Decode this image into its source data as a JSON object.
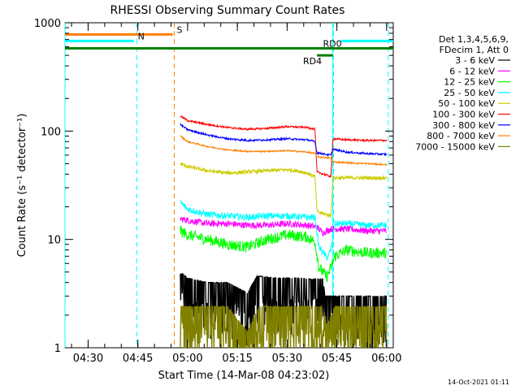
{
  "chart_data": {
    "type": "line",
    "title": "RHESSI Observing Summary Count Rates",
    "xlabel": "Start Time (14-Mar-08 04:23:02)",
    "ylabel": "Count Rate (s⁻¹ detector⁻¹)",
    "yscale": "log",
    "ylim": [
      1,
      1000
    ],
    "xlim": [
      4.3839,
      6.0333
    ],
    "x_unit": "hours UT",
    "x_tick_labels": [
      "04:30",
      "04:45",
      "05:00",
      "05:15",
      "05:30",
      "05:45",
      "06:00"
    ],
    "x_tick_values": [
      4.5,
      4.75,
      5.0,
      5.25,
      5.5,
      5.75,
      6.0
    ],
    "y_tick_labels": [
      "1",
      "10",
      "100",
      "1000"
    ],
    "y_tick_values": [
      1,
      10,
      100,
      1000
    ],
    "legend": {
      "header": [
        "Det 1,3,4,5,6,9,",
        "FDecim 1, Att 0"
      ],
      "placement": "right"
    },
    "series": [
      {
        "name": "3 - 6 keV",
        "color": "#000000",
        "noise": 0.45,
        "kind": "band",
        "points": [
          [
            4.9636,
            5.0
          ],
          [
            5.0,
            4.4
          ],
          [
            5.1,
            4.0
          ],
          [
            5.2,
            4.0
          ],
          [
            5.3,
            3.2
          ],
          [
            5.35,
            4.6
          ],
          [
            5.45,
            4.4
          ],
          [
            5.55,
            4.4
          ],
          [
            5.62,
            4.3
          ],
          [
            5.68,
            4.3
          ],
          [
            5.69,
            3.0
          ],
          [
            5.76,
            3.0
          ],
          [
            5.78,
            3.0
          ],
          [
            5.9,
            3.0
          ],
          [
            6.0,
            3.0
          ]
        ]
      },
      {
        "name": "6 - 12 keV",
        "color": "#ff00ff",
        "noise": 0.07,
        "points": [
          [
            4.9636,
            15.5
          ],
          [
            5.0,
            15.0
          ],
          [
            5.1,
            14.0
          ],
          [
            5.2,
            14.0
          ],
          [
            5.3,
            13.5
          ],
          [
            5.4,
            13.5
          ],
          [
            5.5,
            14.0
          ],
          [
            5.6,
            13.5
          ],
          [
            5.65,
            13.0
          ],
          [
            5.68,
            11.5
          ],
          [
            5.72,
            12.5
          ],
          [
            5.8,
            12.5
          ],
          [
            5.9,
            12.0
          ],
          [
            6.0,
            12.0
          ]
        ]
      },
      {
        "name": "12 - 25 keV",
        "color": "#00ff00",
        "noise": 0.12,
        "points": [
          [
            4.9636,
            12.0
          ],
          [
            5.0,
            11.0
          ],
          [
            5.1,
            10.0
          ],
          [
            5.2,
            9.0
          ],
          [
            5.3,
            8.5
          ],
          [
            5.4,
            10.0
          ],
          [
            5.5,
            11.0
          ],
          [
            5.6,
            10.5
          ],
          [
            5.64,
            9.5
          ],
          [
            5.66,
            5.5
          ],
          [
            5.7,
            4.5
          ],
          [
            5.72,
            5.5
          ],
          [
            5.74,
            7.0
          ],
          [
            5.8,
            8.0
          ],
          [
            5.9,
            7.5
          ],
          [
            6.0,
            7.5
          ]
        ]
      },
      {
        "name": "25 - 50 keV",
        "color": "#00ffff",
        "noise": 0.07,
        "points": [
          [
            4.9636,
            22.0
          ],
          [
            5.0,
            19.0
          ],
          [
            5.1,
            17.0
          ],
          [
            5.2,
            16.5
          ],
          [
            5.3,
            16.0
          ],
          [
            5.4,
            16.5
          ],
          [
            5.5,
            16.5
          ],
          [
            5.6,
            16.0
          ],
          [
            5.64,
            16.0
          ],
          [
            5.66,
            8.5
          ],
          [
            5.7,
            6.8
          ],
          [
            5.72,
            8.0
          ],
          [
            5.74,
            14.0
          ],
          [
            5.8,
            14.0
          ],
          [
            5.9,
            13.5
          ],
          [
            6.0,
            13.5
          ]
        ]
      },
      {
        "name": "50 - 100 keV",
        "color": "#cccc00",
        "noise": 0.04,
        "points": [
          [
            4.9636,
            50.0
          ],
          [
            5.0,
            47.0
          ],
          [
            5.1,
            43.0
          ],
          [
            5.2,
            41.0
          ],
          [
            5.3,
            42.0
          ],
          [
            5.4,
            43.0
          ],
          [
            5.5,
            44.0
          ],
          [
            5.55,
            43.0
          ],
          [
            5.6,
            41.0
          ],
          [
            5.64,
            38.0
          ],
          [
            5.65,
            18.0
          ],
          [
            5.72,
            16.5
          ],
          [
            5.73,
            37.0
          ],
          [
            5.8,
            37.0
          ],
          [
            5.9,
            37.0
          ],
          [
            6.0,
            37.0
          ]
        ]
      },
      {
        "name": "100 - 300 keV",
        "color": "#ff0000",
        "noise": 0.02,
        "points": [
          [
            4.9636,
            138.0
          ],
          [
            5.0,
            125.0
          ],
          [
            5.1,
            115.0
          ],
          [
            5.2,
            108.0
          ],
          [
            5.3,
            104.0
          ],
          [
            5.4,
            106.0
          ],
          [
            5.5,
            110.0
          ],
          [
            5.6,
            108.0
          ],
          [
            5.64,
            104.0
          ],
          [
            5.65,
            42.0
          ],
          [
            5.72,
            38.0
          ],
          [
            5.73,
            85.0
          ],
          [
            5.8,
            83.0
          ],
          [
            5.9,
            82.0
          ],
          [
            6.0,
            82.0
          ]
        ]
      },
      {
        "name": "300 - 800 keV",
        "color": "#0000ff",
        "noise": 0.02,
        "points": [
          [
            4.9636,
            115.0
          ],
          [
            5.0,
            103.0
          ],
          [
            5.1,
            92.0
          ],
          [
            5.2,
            85.0
          ],
          [
            5.3,
            82.0
          ],
          [
            5.4,
            83.0
          ],
          [
            5.5,
            85.0
          ],
          [
            5.6,
            83.0
          ],
          [
            5.64,
            80.0
          ],
          [
            5.65,
            63.0
          ],
          [
            5.72,
            60.0
          ],
          [
            5.73,
            68.0
          ],
          [
            5.8,
            64.0
          ],
          [
            5.9,
            62.0
          ],
          [
            6.0,
            61.0
          ]
        ]
      },
      {
        "name": "800 - 7000 keV",
        "color": "#ff8000",
        "noise": 0.015,
        "points": [
          [
            4.9636,
            90.0
          ],
          [
            5.0,
            80.0
          ],
          [
            5.1,
            72.0
          ],
          [
            5.2,
            67.0
          ],
          [
            5.3,
            65.0
          ],
          [
            5.4,
            65.0
          ],
          [
            5.5,
            66.0
          ],
          [
            5.6,
            64.0
          ],
          [
            5.64,
            62.0
          ],
          [
            5.65,
            58.0
          ],
          [
            5.72,
            56.0
          ],
          [
            5.73,
            52.0
          ],
          [
            5.8,
            51.0
          ],
          [
            5.9,
            50.0
          ],
          [
            6.0,
            49.0
          ]
        ]
      },
      {
        "name": "7000 - 15000 keV",
        "color": "#808000",
        "noise": 0.55,
        "kind": "band",
        "points": [
          [
            4.9636,
            2.4
          ],
          [
            5.1,
            2.4
          ],
          [
            5.2,
            2.4
          ],
          [
            5.3,
            1.4
          ],
          [
            5.36,
            2.4
          ],
          [
            5.5,
            2.4
          ],
          [
            5.62,
            2.4
          ],
          [
            5.68,
            2.4
          ],
          [
            5.7,
            1.6
          ],
          [
            5.74,
            2.4
          ],
          [
            5.9,
            2.4
          ],
          [
            6.0,
            2.4
          ]
        ]
      }
    ],
    "flag_bars": [
      {
        "label": "S",
        "color": "#ff8000",
        "y": 780,
        "x_start": 4.3839,
        "x_end": 4.925
      },
      {
        "label": "N",
        "color": "#00ffff",
        "y": 680,
        "x_start": 4.3839,
        "x_end": 4.73,
        "label_x": 4.75
      },
      {
        "label": "N",
        "color": "#00ffff",
        "y": 680,
        "x_start": 5.77,
        "x_end": 6.0333,
        "show_label": false
      },
      {
        "label": "RD0",
        "color": "#008000",
        "y": 580,
        "x_start": 4.3839,
        "x_end": 6.0333,
        "label_x": 5.68
      },
      {
        "label": "RD4",
        "color": "#008000",
        "y": 500,
        "x_start": 5.65,
        "x_end": 5.73,
        "label_x": 5.58,
        "label_side": "below"
      }
    ],
    "vlines": [
      {
        "x": 4.3839,
        "color": "#00ffff",
        "style": "solid"
      },
      {
        "x": 4.7447,
        "color": "#00ffff",
        "style": "dashed"
      },
      {
        "x": 4.9333,
        "color": "#ff8000",
        "style": "dashed"
      },
      {
        "x": 5.7283,
        "color": "#00ffff",
        "style": "solid"
      },
      {
        "x": 5.7333,
        "color": "#00ffff",
        "style": "dashed"
      },
      {
        "x": 6.0083,
        "color": "#00ffff",
        "style": "dashed"
      }
    ]
  },
  "footer": {
    "timestamp": "14-Oct-2021 01:11"
  }
}
